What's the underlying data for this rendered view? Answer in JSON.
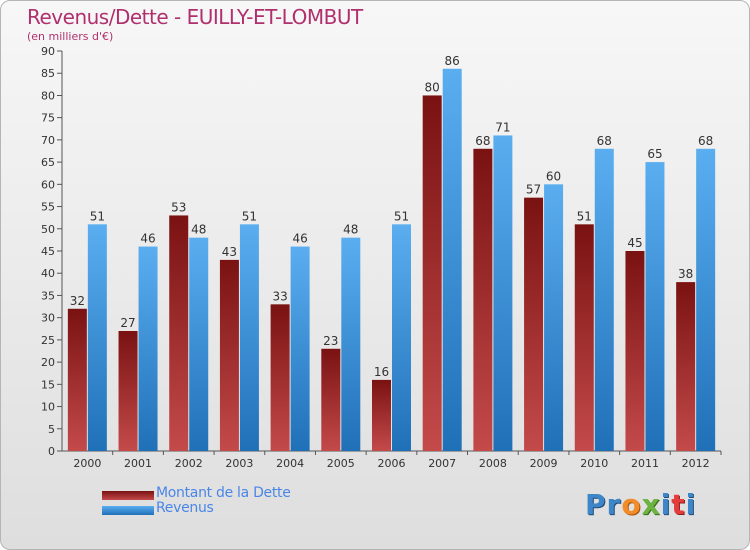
{
  "title": "Revenus/Dette - EUILLY-ET-LOMBUT",
  "subtitle": "(en milliers d'€)",
  "logo": "Proxiti",
  "colors": {
    "dette_top": "#7a1212",
    "dette_bottom": "#c44a4a",
    "revenus_top": "#5aaef0",
    "revenus_bottom": "#2070b8",
    "title": "#b0306e",
    "legend_text": "#4a86e8"
  },
  "chart_data": {
    "type": "bar",
    "title": "Revenus/Dette - EUILLY-ET-LOMBUT",
    "subtitle": "(en milliers d'€)",
    "categories": [
      "2000",
      "2001",
      "2002",
      "2003",
      "2004",
      "2005",
      "2006",
      "2007",
      "2008",
      "2009",
      "2010",
      "2011",
      "2012"
    ],
    "series": [
      {
        "name": "Montant de la Dette",
        "values": [
          32,
          27,
          53,
          43,
          33,
          23,
          16,
          80,
          68,
          57,
          51,
          45,
          38
        ]
      },
      {
        "name": "Revenus",
        "values": [
          51,
          46,
          48,
          51,
          46,
          48,
          51,
          86,
          71,
          60,
          68,
          65,
          68
        ]
      }
    ],
    "ylim": [
      0,
      90
    ],
    "yticks": [
      0,
      5,
      10,
      15,
      20,
      25,
      30,
      35,
      40,
      45,
      50,
      55,
      60,
      65,
      70,
      75,
      80,
      85,
      90
    ],
    "grid": false,
    "legend": "bottom-left"
  }
}
